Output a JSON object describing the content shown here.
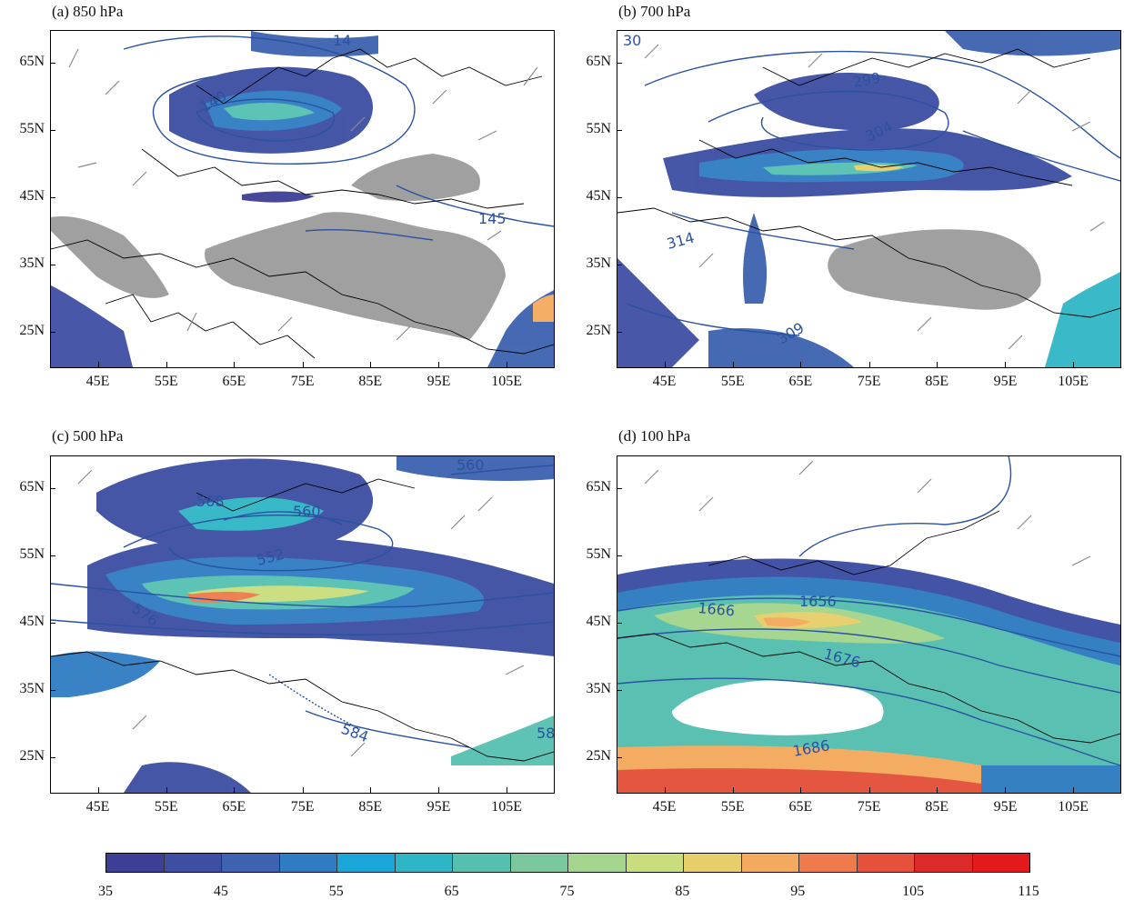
{
  "panels": [
    {
      "id": "a",
      "title": "(a) 850 hPa",
      "contour_labels": [
        "140",
        "145",
        "14"
      ]
    },
    {
      "id": "b",
      "title": "(b) 700 hPa",
      "contour_labels": [
        "299",
        "304",
        "314",
        "309",
        "30"
      ]
    },
    {
      "id": "c",
      "title": "(c) 500 hPa",
      "contour_labels": [
        "568",
        "560",
        "552",
        "576",
        "584",
        "560",
        "58"
      ]
    },
    {
      "id": "d",
      "title": "(d) 100 hPa",
      "contour_labels": [
        "1656",
        "1666",
        "1676",
        "1686"
      ]
    }
  ],
  "lat_labels": [
    "65N",
    "55N",
    "45N",
    "35N",
    "25N"
  ],
  "lon_labels": [
    "45E",
    "55E",
    "65E",
    "75E",
    "85E",
    "95E",
    "105E"
  ],
  "colorbar": {
    "labels": [
      "35",
      "45",
      "55",
      "65",
      "75",
      "85",
      "95",
      "105",
      "115"
    ],
    "colors": [
      "#3d3f97",
      "#3e4ea3",
      "#3d62b1",
      "#2f7cc2",
      "#1aa6d9",
      "#2fb6c6",
      "#55c0b0",
      "#7cc89e",
      "#a4d58c",
      "#c9dd7c",
      "#e6cf6b",
      "#f4aa5e",
      "#ef7a4b",
      "#e5513a",
      "#dc2a2a",
      "#e3191c"
    ]
  },
  "map_colors": {
    "terrain_mask": "#a0a0a0",
    "contour_line": "#2a52a0",
    "wind_barb": "#8c8c8c",
    "border": "#000000"
  }
}
